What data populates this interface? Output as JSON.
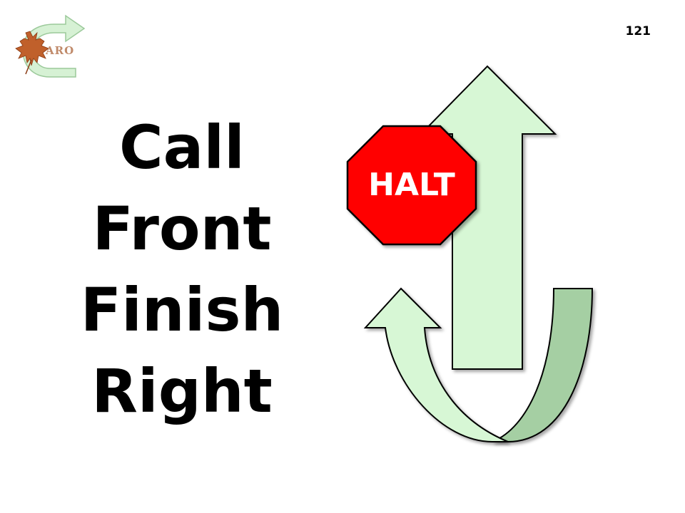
{
  "logo": {
    "text": "ARO",
    "icon": "maple-leaf-circular-arrow-logo"
  },
  "page_number": "121",
  "headline": {
    "lines": [
      "Call",
      "Front",
      "Finish",
      "Right"
    ]
  },
  "graphic": {
    "stop_sign_text": "HALT",
    "colors": {
      "arrow_light": "#d7f7d5",
      "arrow_dark": "#a5cfa3",
      "stop_red": "#ff0000",
      "outline": "#000000"
    }
  }
}
